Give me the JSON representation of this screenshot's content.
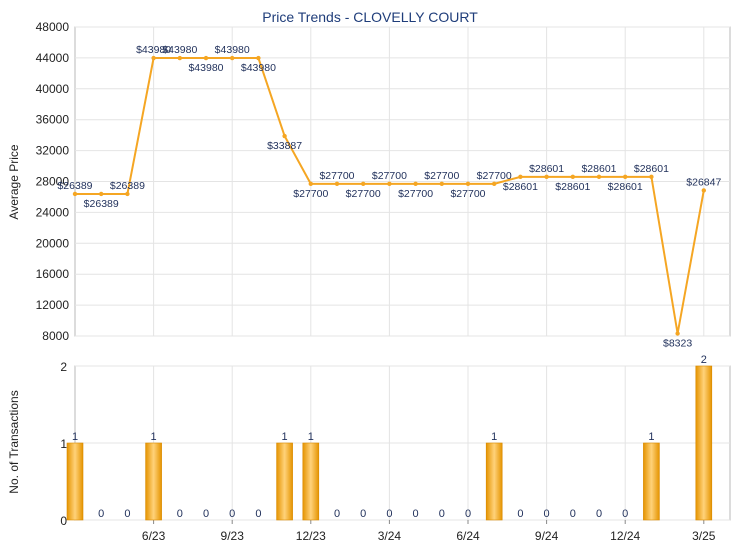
{
  "chart_data": [
    {
      "type": "line",
      "title": "Price Trends - CLOVELLY COURT",
      "ylabel": "Average Price",
      "ylim": [
        8000,
        48000
      ],
      "yticks": [
        8000,
        12000,
        16000,
        20000,
        24000,
        28000,
        32000,
        36000,
        40000,
        44000,
        48000
      ],
      "x_range": [
        "2023-03",
        "2025-04"
      ],
      "xtick_labels": [
        "6/23",
        "9/23",
        "12/23",
        "3/24",
        "6/24",
        "9/24",
        "12/24",
        "3/25"
      ],
      "grid": true,
      "series": [
        {
          "color": "#f5a623",
          "points": [
            {
              "x": "2023-03",
              "y": 26389,
              "label": "$26389"
            },
            {
              "x": "2023-04",
              "y": 26389,
              "label": "$26389"
            },
            {
              "x": "2023-05",
              "y": 26389,
              "label": "$26389"
            },
            {
              "x": "2023-06",
              "y": 43980,
              "label": "$43980"
            },
            {
              "x": "2023-07",
              "y": 43980,
              "label": "$43980"
            },
            {
              "x": "2023-08",
              "y": 43980,
              "label": "$43980"
            },
            {
              "x": "2023-09",
              "y": 43980,
              "label": "$43980"
            },
            {
              "x": "2023-10",
              "y": 43980,
              "label": "$43980"
            },
            {
              "x": "2023-11",
              "y": 33887,
              "label": "$33887"
            },
            {
              "x": "2023-12",
              "y": 27700,
              "label": "$27700"
            },
            {
              "x": "2024-01",
              "y": 27700,
              "label": "$27700"
            },
            {
              "x": "2024-02",
              "y": 27700,
              "label": "$27700"
            },
            {
              "x": "2024-03",
              "y": 27700,
              "label": "$27700"
            },
            {
              "x": "2024-04",
              "y": 27700,
              "label": "$27700"
            },
            {
              "x": "2024-05",
              "y": 27700,
              "label": "$27700"
            },
            {
              "x": "2024-06",
              "y": 27700,
              "label": "$27700"
            },
            {
              "x": "2024-07",
              "y": 27700,
              "label": "$27700"
            },
            {
              "x": "2024-08",
              "y": 28601,
              "label": "$28601"
            },
            {
              "x": "2024-09",
              "y": 28601,
              "label": "$28601"
            },
            {
              "x": "2024-10",
              "y": 28601,
              "label": "$28601"
            },
            {
              "x": "2024-11",
              "y": 28601,
              "label": "$28601"
            },
            {
              "x": "2024-12",
              "y": 28601,
              "label": "$28601"
            },
            {
              "x": "2025-01",
              "y": 28601,
              "label": "$28601"
            },
            {
              "x": "2025-02",
              "y": 8323,
              "label": "$8323"
            },
            {
              "x": "2025-03",
              "y": 26847,
              "label": "$26847"
            }
          ]
        }
      ]
    },
    {
      "type": "bar",
      "ylabel": "No. of Transactions",
      "ylim": [
        0,
        2
      ],
      "yticks": [
        0,
        1,
        2
      ],
      "x_range": [
        "2023-03",
        "2025-04"
      ],
      "xtick_labels": [
        "6/23",
        "9/23",
        "12/23",
        "3/24",
        "6/24",
        "9/24",
        "12/24",
        "3/25"
      ],
      "grid": true,
      "bar_color": "#f5a623",
      "bars": [
        {
          "x": "2023-03",
          "value": 1
        },
        {
          "x": "2023-04",
          "value": 0
        },
        {
          "x": "2023-05",
          "value": 0
        },
        {
          "x": "2023-06",
          "value": 1
        },
        {
          "x": "2023-07",
          "value": 0
        },
        {
          "x": "2023-08",
          "value": 0
        },
        {
          "x": "2023-09",
          "value": 0
        },
        {
          "x": "2023-10",
          "value": 0
        },
        {
          "x": "2023-11",
          "value": 1
        },
        {
          "x": "2023-12",
          "value": 1
        },
        {
          "x": "2024-01",
          "value": 0
        },
        {
          "x": "2024-02",
          "value": 0
        },
        {
          "x": "2024-03",
          "value": 0
        },
        {
          "x": "2024-04",
          "value": 0
        },
        {
          "x": "2024-05",
          "value": 0
        },
        {
          "x": "2024-06",
          "value": 0
        },
        {
          "x": "2024-07",
          "value": 1
        },
        {
          "x": "2024-08",
          "value": 0
        },
        {
          "x": "2024-09",
          "value": 0
        },
        {
          "x": "2024-10",
          "value": 0
        },
        {
          "x": "2024-11",
          "value": 0
        },
        {
          "x": "2024-12",
          "value": 0
        },
        {
          "x": "2025-01",
          "value": 1
        },
        {
          "x": "2025-03",
          "value": 2
        }
      ]
    }
  ]
}
